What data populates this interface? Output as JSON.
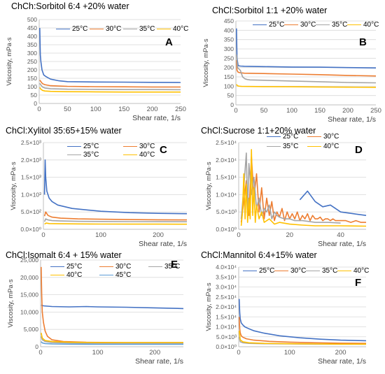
{
  "colors": {
    "25°C": "#4472C4",
    "30°C": "#ED7D31",
    "35°C": "#A5A5A5",
    "40°C": "#FFC000",
    "45°C": "#5B9BD5"
  },
  "chart_data": [
    {
      "id": "A",
      "type": "line",
      "letter": "A",
      "title": "ChCh:Sorbitol 6:4 +20% water",
      "xlabel": "Shear rate, 1/s",
      "ylabel": "Viscosity, mPa·s",
      "xlim": [
        0,
        250
      ],
      "ylim": [
        0,
        500
      ],
      "xticks": [
        0,
        50,
        100,
        150,
        200,
        250
      ],
      "xticklabels": [
        "0",
        "50",
        "100",
        "150",
        "200",
        "250"
      ],
      "yticks": [
        0,
        50,
        100,
        150,
        200,
        250,
        300,
        350,
        400,
        450,
        500
      ],
      "yticklabels": [
        "0",
        "50",
        "100",
        "150",
        "200",
        "250",
        "300",
        "350",
        "400",
        "450",
        "500"
      ],
      "legend_position": "top",
      "series": [
        {
          "name": "25°C",
          "x": [
            1,
            2,
            3,
            5,
            8,
            12,
            20,
            35,
            50,
            100,
            150,
            200,
            250
          ],
          "y": [
            450,
            290,
            250,
            200,
            170,
            160,
            145,
            135,
            130,
            128,
            127,
            126,
            125
          ]
        },
        {
          "name": "30°C",
          "x": [
            1,
            3,
            6,
            10,
            20,
            50,
            100,
            150,
            200,
            250
          ],
          "y": [
            140,
            130,
            118,
            112,
            106,
            102,
            100,
            99,
            98,
            98
          ]
        },
        {
          "name": "35°C",
          "x": [
            1,
            3,
            6,
            10,
            20,
            50,
            100,
            150,
            200,
            250
          ],
          "y": [
            120,
            110,
            98,
            92,
            88,
            85,
            84,
            83,
            83,
            82
          ]
        },
        {
          "name": "40°C",
          "x": [
            1,
            3,
            6,
            10,
            20,
            50,
            100,
            150,
            200,
            250
          ],
          "y": [
            95,
            85,
            78,
            74,
            72,
            70,
            69,
            68,
            68,
            68
          ]
        }
      ]
    },
    {
      "id": "B",
      "type": "line",
      "letter": "B",
      "title": "ChCl:Sorbitol 1:1 +20% water",
      "xlabel": "Shear rate, 1/s",
      "ylabel": "Viscosity, mPa·s",
      "xlim": [
        0,
        250
      ],
      "ylim": [
        0,
        450
      ],
      "xticks": [
        0,
        50,
        100,
        150,
        200,
        250
      ],
      "xticklabels": [
        "0",
        "50",
        "100",
        "150",
        "200",
        "250"
      ],
      "yticks": [
        0,
        50,
        100,
        150,
        200,
        250,
        300,
        350,
        400,
        450
      ],
      "yticklabels": [
        "0",
        "50",
        "100",
        "150",
        "200",
        "250",
        "300",
        "350",
        "400",
        "450"
      ],
      "legend_position": "top",
      "series": [
        {
          "name": "25°C",
          "x": [
            1,
            2,
            4,
            8,
            15,
            50,
            100,
            150,
            200,
            250
          ],
          "y": [
            410,
            250,
            210,
            208,
            207,
            205,
            203,
            202,
            200,
            198
          ]
        },
        {
          "name": "30°C",
          "x": [
            1,
            2,
            4,
            8,
            15,
            50,
            100,
            150,
            200,
            250
          ],
          "y": [
            240,
            185,
            175,
            172,
            170,
            168,
            165,
            162,
            158,
            155
          ]
        },
        {
          "name": "35°C",
          "x": [
            1,
            3,
            8,
            12,
            16,
            20,
            25,
            50,
            100,
            150,
            200,
            250
          ],
          "y": [
            270,
            200,
            185,
            150,
            140,
            136,
            134,
            132,
            128,
            124,
            120,
            118
          ]
        },
        {
          "name": "40°C",
          "x": [
            1,
            3,
            6,
            10,
            50,
            100,
            150,
            200,
            250
          ],
          "y": [
            110,
            102,
            100,
            99,
            98,
            97,
            96,
            95,
            94
          ]
        }
      ]
    },
    {
      "id": "C",
      "type": "line",
      "letter": "C",
      "title": "ChCl:Xylitol 35:65+15% water",
      "xlabel": "Shear rate, 1/s",
      "ylabel": "Viscosity, mPa·s",
      "xlim": [
        0,
        250
      ],
      "ylim": [
        0,
        2500
      ],
      "xticks": [
        0,
        100,
        200
      ],
      "xticklabels": [
        "0",
        "100",
        "200"
      ],
      "yticks": [
        0,
        500,
        1000,
        1500,
        2000,
        2500
      ],
      "yticklabels": [
        "0.0×10⁰",
        "5.0×10²",
        "1.0×10³",
        "1.5×10³",
        "2.0×10³",
        "2.5×10³"
      ],
      "legend_position": "top",
      "series": [
        {
          "name": "25°C",
          "x": [
            2,
            3,
            4,
            6,
            10,
            15,
            25,
            50,
            100,
            150,
            200,
            250
          ],
          "y": [
            1000,
            2000,
            1500,
            1100,
            900,
            800,
            700,
            600,
            520,
            480,
            460,
            450
          ]
        },
        {
          "name": "30°C",
          "x": [
            2,
            4,
            8,
            15,
            30,
            60,
            100,
            150,
            200,
            250
          ],
          "y": [
            380,
            500,
            400,
            350,
            320,
            300,
            290,
            280,
            275,
            270
          ]
        },
        {
          "name": "35°C",
          "x": [
            2,
            4,
            8,
            15,
            30,
            60,
            100,
            150,
            200,
            250
          ],
          "y": [
            220,
            300,
            270,
            250,
            240,
            230,
            225,
            222,
            220,
            218
          ]
        },
        {
          "name": "40°C",
          "x": [
            2,
            5,
            10,
            30,
            60,
            100,
            150,
            200,
            250
          ],
          "y": [
            150,
            180,
            165,
            160,
            155,
            152,
            150,
            150,
            148
          ]
        }
      ]
    },
    {
      "id": "D",
      "type": "line",
      "letter": "D",
      "title": "ChCl:Sucrose 1:1+20% water",
      "xlabel": "Shear rate, 1/s",
      "ylabel": "Viscosity, mPa·s",
      "xlim": [
        0,
        50
      ],
      "ylim": [
        0,
        25000
      ],
      "xticks": [
        0,
        20,
        40
      ],
      "xticklabels": [
        "0",
        "20",
        "40"
      ],
      "yticks": [
        0,
        5000,
        10000,
        15000,
        20000,
        25000
      ],
      "yticklabels": [
        "0.0×10⁰",
        "5.0×10³",
        "1.0×10⁴",
        "1.5×10⁴",
        "2.0×10⁴",
        "2.5×10⁴"
      ],
      "legend_position": "top",
      "series": [
        {
          "name": "25°C",
          "x": [
            24,
            27,
            30,
            33,
            36,
            40,
            45,
            50
          ],
          "y": [
            8500,
            11000,
            8000,
            6500,
            7000,
            5000,
            4500,
            4000
          ]
        },
        {
          "name": "30°C",
          "x": [
            1,
            2,
            3,
            4,
            5,
            6,
            7,
            8,
            9,
            10,
            11,
            12,
            13,
            14,
            15,
            16,
            17,
            18,
            19,
            20,
            21,
            22,
            23,
            24,
            25,
            26,
            27,
            28,
            29,
            30,
            31,
            32,
            33,
            34,
            35,
            36,
            37,
            38,
            39,
            40,
            42,
            44,
            46,
            48,
            50
          ],
          "y": [
            2000,
            8000,
            14000,
            4000,
            21000,
            9000,
            16000,
            5000,
            12000,
            3000,
            9000,
            4000,
            8000,
            2500,
            5000,
            3500,
            6000,
            2500,
            5000,
            3000,
            4500,
            3000,
            5000,
            2500,
            4000,
            3000,
            4500,
            2500,
            4000,
            3000,
            3000,
            3500,
            2500,
            3000,
            3000,
            2500,
            3000,
            2500,
            2500,
            2500,
            2500,
            2000,
            2500,
            2000,
            2000
          ]
        },
        {
          "name": "35°C",
          "x": [
            1,
            2,
            3,
            3.5,
            4,
            5,
            6,
            7,
            8,
            9,
            10,
            11,
            12,
            13,
            14,
            15,
            16,
            18,
            20,
            22,
            25,
            30,
            35,
            40
          ],
          "y": [
            3000,
            12000,
            22000,
            5000,
            19000,
            10000,
            15000,
            6000,
            9000,
            4000,
            6000,
            5000,
            7000,
            3000,
            5000,
            4000,
            3500,
            3000,
            3000,
            2500,
            2500,
            2000,
            2000,
            1800
          ]
        },
        {
          "name": "40°C",
          "x": [
            1,
            1.5,
            2,
            2.5,
            3,
            3.5,
            4,
            4.5,
            5,
            5.5,
            6,
            6.5,
            7,
            8,
            9,
            10,
            12,
            14,
            16,
            20,
            25,
            30,
            40,
            50
          ],
          "y": [
            1000,
            5000,
            16000,
            3000,
            13000,
            2000,
            9000,
            3000,
            23000,
            4000,
            12000,
            2000,
            7000,
            3000,
            5000,
            2000,
            3000,
            1500,
            2000,
            1500,
            1200,
            1000,
            1000,
            900
          ]
        }
      ]
    },
    {
      "id": "E",
      "type": "line",
      "letter": "E",
      "title": "ChCl:Isomalt 6:4 + 15% water",
      "xlabel": "Shear rate, 1/s",
      "ylabel": "Viscosity, mPa·s",
      "xlim": [
        0,
        250
      ],
      "ylim": [
        0,
        25000
      ],
      "xticks": [
        0,
        100,
        200
      ],
      "xticklabels": [
        "0",
        "100",
        "200"
      ],
      "yticks": [
        0,
        5000,
        10000,
        15000,
        20000,
        25000
      ],
      "yticklabels": [
        "0",
        "5,000",
        "10,000",
        "15,000",
        "20,000",
        "25,000"
      ],
      "legend_position": "top",
      "series": [
        {
          "name": "25°C",
          "x": [
            1,
            5,
            20,
            50,
            80,
            100,
            150,
            200,
            250
          ],
          "y": [
            12000,
            11800,
            11600,
            11500,
            11600,
            11500,
            11400,
            11200,
            11000
          ]
        },
        {
          "name": "30°C",
          "x": [
            1,
            2,
            3,
            5,
            8,
            12,
            20,
            40,
            80,
            150,
            250
          ],
          "y": [
            23000,
            15000,
            10000,
            7000,
            4500,
            3000,
            2000,
            1500,
            1300,
            1200,
            1200
          ]
        },
        {
          "name": "35°C",
          "x": [
            1,
            3,
            8,
            20,
            50,
            100,
            150,
            200,
            250
          ],
          "y": [
            3000,
            2000,
            1500,
            1200,
            1100,
            1000,
            1000,
            1000,
            1000
          ]
        },
        {
          "name": "40°C",
          "x": [
            1,
            3,
            8,
            20,
            50,
            100,
            150,
            200,
            250
          ],
          "y": [
            4000,
            2500,
            1800,
            1500,
            1300,
            1200,
            1200,
            1200,
            1200
          ]
        },
        {
          "name": "45°C",
          "x": [
            1,
            3,
            8,
            20,
            50,
            100,
            150,
            200,
            250
          ],
          "y": [
            1500,
            1100,
            900,
            800,
            750,
            700,
            700,
            700,
            700
          ]
        }
      ]
    },
    {
      "id": "F",
      "type": "line",
      "letter": "F",
      "title": "ChCl:Mannitol 6:4+15% water",
      "xlabel": "Shear rate, 1/s",
      "ylabel": "Viscosity, mPa·s",
      "xlim": [
        0,
        250
      ],
      "ylim": [
        0,
        40000
      ],
      "xticks": [
        0,
        100,
        200
      ],
      "xticklabels": [
        "0",
        "100",
        "200"
      ],
      "yticks": [
        0,
        5000,
        10000,
        15000,
        20000,
        25000,
        30000,
        35000,
        40000
      ],
      "yticklabels": [
        "0.0×10⁰",
        "5.0×10³",
        "1.0×10⁴",
        "1.5×10⁴",
        "2.0×10⁴",
        "2.5×10⁴",
        "3.0×10⁴",
        "3.5×10⁴",
        "4.0×10⁴"
      ],
      "legend_position": "top",
      "series": [
        {
          "name": "25°C",
          "x": [
            1,
            2,
            3,
            5,
            8,
            12,
            20,
            30,
            50,
            80,
            120,
            160,
            200,
            250
          ],
          "y": [
            24000,
            17000,
            14000,
            12000,
            11000,
            10000,
            9000,
            8000,
            6800,
            5500,
            4500,
            3800,
            3300,
            3000
          ]
        },
        {
          "name": "30°C",
          "x": [
            1,
            2,
            3,
            5,
            8,
            15,
            30,
            60,
            100,
            150,
            200,
            250
          ],
          "y": [
            15000,
            9000,
            7000,
            5500,
            4800,
            4000,
            3300,
            2700,
            2300,
            2000,
            1800,
            1700
          ]
        },
        {
          "name": "35°C",
          "x": [
            1,
            3,
            8,
            20,
            50,
            100,
            150,
            200,
            250
          ],
          "y": [
            5000,
            2500,
            2000,
            1700,
            1500,
            1400,
            1300,
            1300,
            1250
          ]
        },
        {
          "name": "40°C",
          "x": [
            1,
            3,
            8,
            20,
            50,
            100,
            150,
            200,
            250
          ],
          "y": [
            8000,
            3500,
            2500,
            2000,
            1700,
            1500,
            1400,
            1300,
            1300
          ]
        }
      ]
    }
  ]
}
